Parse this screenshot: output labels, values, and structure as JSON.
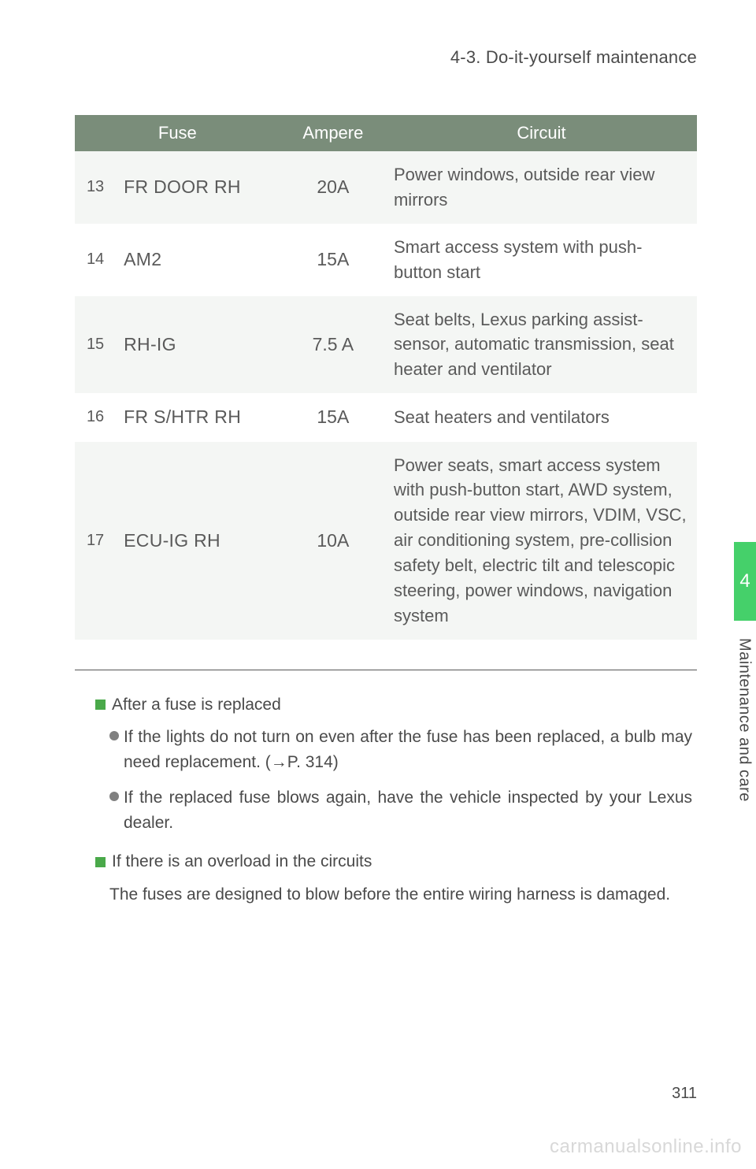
{
  "header": {
    "section_title": "4-3. Do-it-yourself maintenance"
  },
  "fuse_table": {
    "columns": {
      "fuse": "Fuse",
      "ampere": "Ampere",
      "circuit": "Circuit"
    },
    "header_bg": "#7a8d7a",
    "header_fg": "#ffffff",
    "row_odd_bg": "#f4f6f4",
    "row_even_bg": "#ffffff",
    "rows": [
      {
        "idx": "13",
        "fuse": "FR DOOR RH",
        "ampere": "20A",
        "circuit": "Power windows, outside rear view mirrors"
      },
      {
        "idx": "14",
        "fuse": "AM2",
        "ampere": "15A",
        "circuit": "Smart access system with push-button start"
      },
      {
        "idx": "15",
        "fuse": "RH-IG",
        "ampere": "7.5 A",
        "circuit": "Seat belts, Lexus parking assist-sensor, automatic transmission, seat heater and ventilator"
      },
      {
        "idx": "16",
        "fuse": "FR S/HTR RH",
        "ampere": "15A",
        "circuit": "Seat heaters and ventilators"
      },
      {
        "idx": "17",
        "fuse": "ECU-IG RH",
        "ampere": "10A",
        "circuit": "Power seats, smart access system with push-button start, AWD system, outside rear view mirrors, VDIM, VSC, air conditioning system, pre-collision safety belt, electric tilt and telescopic steering, power windows, navigation system"
      }
    ]
  },
  "notes": {
    "bullet_color": "#4aa94a",
    "dot_color": "#808080",
    "section1_title": "After a fuse is replaced",
    "section1_item1": "If the lights do not turn on even after the fuse has been replaced, a bulb may need replacement. (→P. 314)",
    "section1_item2": "If the replaced fuse blows again, have the vehicle inspected by your Lexus dealer.",
    "section2_title": "If there is an overload in the circuits",
    "section2_body": "The fuses are designed to blow before the entire wiring harness is damaged."
  },
  "side": {
    "tab_number": "4",
    "tab_bg": "#45d06a",
    "tab_fg": "#ffffff",
    "label": "Maintenance and care"
  },
  "footer": {
    "page_number": "311",
    "watermark": "carmanualsonline.info",
    "watermark_color": "#d8d8d8"
  }
}
